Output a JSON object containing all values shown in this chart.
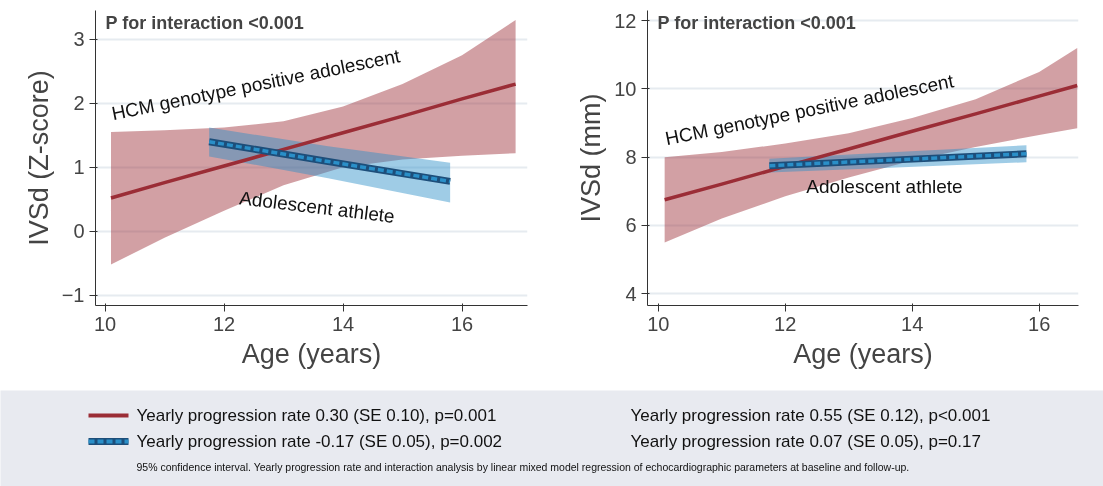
{
  "chart_data": [
    {
      "type": "line",
      "xlabel": "Age (years)",
      "ylabel": "IVSd (Z-score)",
      "xlim": [
        9.84,
        17.1
      ],
      "ylim": [
        -1.16,
        3.45
      ],
      "xticks": [
        10,
        12,
        14,
        16
      ],
      "yticks": [
        -1,
        0,
        1,
        2,
        3
      ],
      "grid": "y",
      "legend": false,
      "marker": "none",
      "annotations": [
        "P for interaction <0.001",
        "Yearly progression rate 0.30 (SE 0.10), p=0.001",
        "Yearly progression rate -0.17 (SE 0.05), p=0.002",
        "95% confidence interval. Yearly progression rate and interaction analysis by linear mixed model regression of echocardiographic parameters at baseline and follow-up."
      ],
      "series": [
        {
          "name": "HCM genotype positive adolescent",
          "color": "#9b2d36",
          "line_style": "solid",
          "x": [
            10.1,
            11,
            12,
            13,
            14,
            15,
            16,
            16.9
          ],
          "values": [
            0.52,
            0.76,
            1.02,
            1.28,
            1.54,
            1.8,
            2.07,
            2.3
          ],
          "lower": [
            -0.52,
            -0.1,
            0.32,
            0.72,
            1.0,
            1.12,
            1.18,
            1.22
          ],
          "upper": [
            1.55,
            1.58,
            1.62,
            1.72,
            1.95,
            2.3,
            2.75,
            3.3
          ]
        },
        {
          "name": "Adolescent athlete",
          "color": "#2a8fc8",
          "line_style": "dashed",
          "x": [
            11.75,
            13.75,
            15.8
          ],
          "values": [
            1.4,
            1.09,
            0.78
          ],
          "lower": [
            1.17,
            0.83,
            0.45
          ],
          "upper": [
            1.62,
            1.33,
            1.07
          ]
        }
      ]
    },
    {
      "type": "line",
      "xlabel": "Age (years)",
      "ylabel": "IVSd (mm)",
      "xlim": [
        9.83,
        16.62
      ],
      "ylim": [
        3.65,
        12.3
      ],
      "xticks": [
        10,
        12,
        14,
        16
      ],
      "yticks": [
        4,
        6,
        8,
        10,
        12
      ],
      "grid": "y",
      "legend": false,
      "marker": "none",
      "annotations": [
        "P for interaction <0.001",
        "Yearly progression rate 0.55 (SE 0.12), p<0.001",
        "Yearly progression rate 0.07 (SE 0.05), p=0.17"
      ],
      "series": [
        {
          "name": "HCM genotype positive adolescent",
          "color": "#9b2d36",
          "line_style": "solid",
          "x": [
            10.1,
            11,
            12,
            13,
            14,
            15,
            16,
            16.6
          ],
          "values": [
            6.75,
            7.21,
            7.73,
            8.24,
            8.76,
            9.27,
            9.79,
            10.1
          ],
          "lower": [
            5.5,
            6.2,
            6.85,
            7.4,
            7.9,
            8.3,
            8.65,
            8.85
          ],
          "upper": [
            8.0,
            8.15,
            8.4,
            8.7,
            9.15,
            9.7,
            10.5,
            11.2
          ]
        },
        {
          "name": "Adolescent athlete",
          "color": "#2a8fc8",
          "line_style": "dashed",
          "x": [
            11.75,
            13.75,
            15.8
          ],
          "values": [
            7.75,
            7.92,
            8.1
          ],
          "lower": [
            7.55,
            7.7,
            7.85
          ],
          "upper": [
            7.95,
            8.15,
            8.35
          ]
        }
      ]
    }
  ]
}
